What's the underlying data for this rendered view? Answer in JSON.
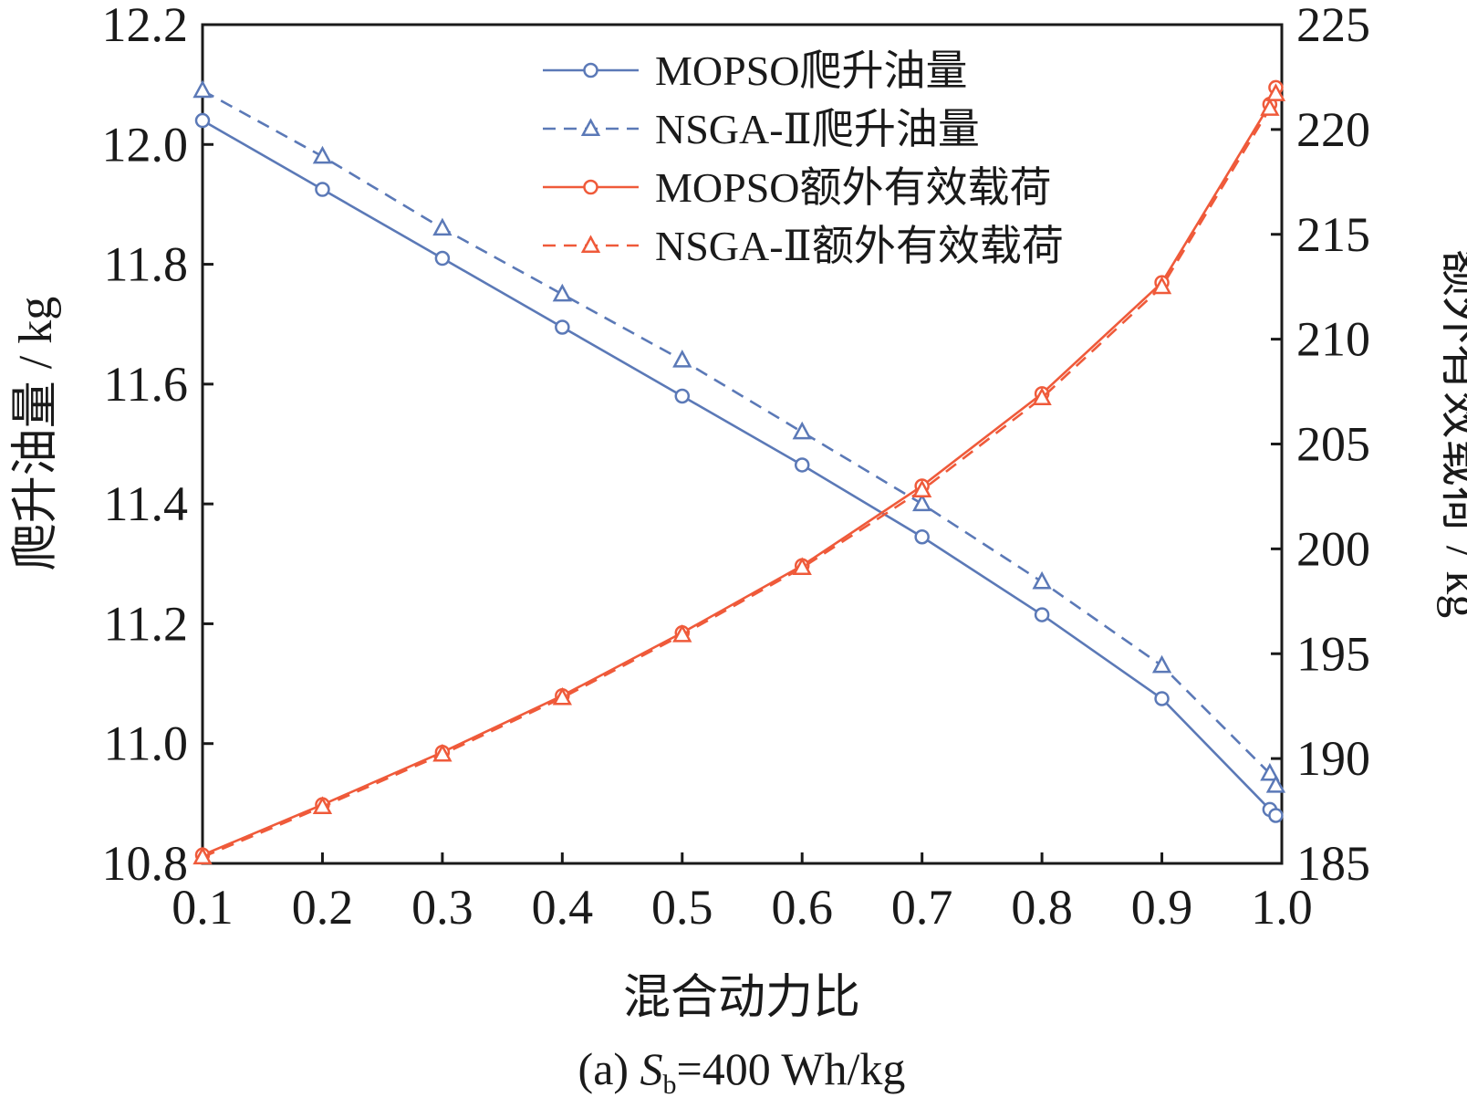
{
  "chart_data": {
    "type": "line",
    "title": "",
    "xlabel": "混合动力比",
    "ylabel_left": "爬升油量 / kg",
    "ylabel_right": "额外有效载荷 / kg",
    "caption": {
      "prefix": "(a) ",
      "symbol": "S",
      "subscript": "b",
      "suffix": "=400 Wh/kg"
    },
    "xlim": [
      0.1,
      1.0
    ],
    "ylim_left": [
      10.8,
      12.2
    ],
    "ylim_right": [
      185,
      225
    ],
    "x_ticks": [
      "0.1",
      "0.2",
      "0.3",
      "0.4",
      "0.5",
      "0.6",
      "0.7",
      "0.8",
      "0.9",
      "1.0"
    ],
    "y_left_ticks": [
      "10.8",
      "11.0",
      "11.2",
      "11.4",
      "11.6",
      "11.8",
      "12.0",
      "12.2"
    ],
    "y_right_ticks": [
      "185",
      "190",
      "195",
      "200",
      "205",
      "210",
      "215",
      "220",
      "225"
    ],
    "grid": false,
    "legend_position": "top-center",
    "colors": {
      "blue": "#5b79b7",
      "red": "#ef5a3a",
      "axis": "#1a1a1a"
    },
    "series": [
      {
        "name": "MOPSO爬升油量",
        "axis": "left",
        "color": "#5b79b7",
        "dashed": false,
        "marker": "circle",
        "x": [
          0.1,
          0.2,
          0.3,
          0.4,
          0.5,
          0.6,
          0.7,
          0.8,
          0.9,
          0.99,
          0.995
        ],
        "y": [
          12.04,
          11.925,
          11.81,
          11.695,
          11.58,
          11.465,
          11.345,
          11.215,
          11.075,
          10.89,
          10.88
        ]
      },
      {
        "name": "NSGA-Ⅱ爬升油量",
        "axis": "left",
        "color": "#5b79b7",
        "dashed": true,
        "marker": "triangle",
        "x": [
          0.1,
          0.2,
          0.3,
          0.4,
          0.5,
          0.6,
          0.7,
          0.8,
          0.9,
          0.99,
          0.995
        ],
        "y": [
          12.09,
          11.98,
          11.86,
          11.75,
          11.64,
          11.52,
          11.4,
          11.27,
          11.13,
          10.95,
          10.93
        ]
      },
      {
        "name": "MOPSO额外有效载荷",
        "axis": "right",
        "color": "#ef5a3a",
        "dashed": false,
        "marker": "circle",
        "x": [
          0.1,
          0.2,
          0.3,
          0.4,
          0.5,
          0.6,
          0.7,
          0.8,
          0.9,
          0.99,
          0.995
        ],
        "y": [
          185.4,
          187.8,
          190.3,
          193.0,
          196.0,
          199.2,
          203.0,
          207.4,
          212.7,
          221.2,
          222.0
        ]
      },
      {
        "name": "NSGA-Ⅱ额外有效载荷",
        "axis": "right",
        "color": "#ef5a3a",
        "dashed": true,
        "marker": "triangle",
        "x": [
          0.1,
          0.2,
          0.3,
          0.4,
          0.5,
          0.6,
          0.7,
          0.8,
          0.9,
          0.99,
          0.995
        ],
        "y": [
          185.3,
          187.7,
          190.2,
          192.9,
          195.9,
          199.1,
          202.8,
          207.2,
          212.5,
          221.0,
          221.7
        ]
      }
    ]
  }
}
